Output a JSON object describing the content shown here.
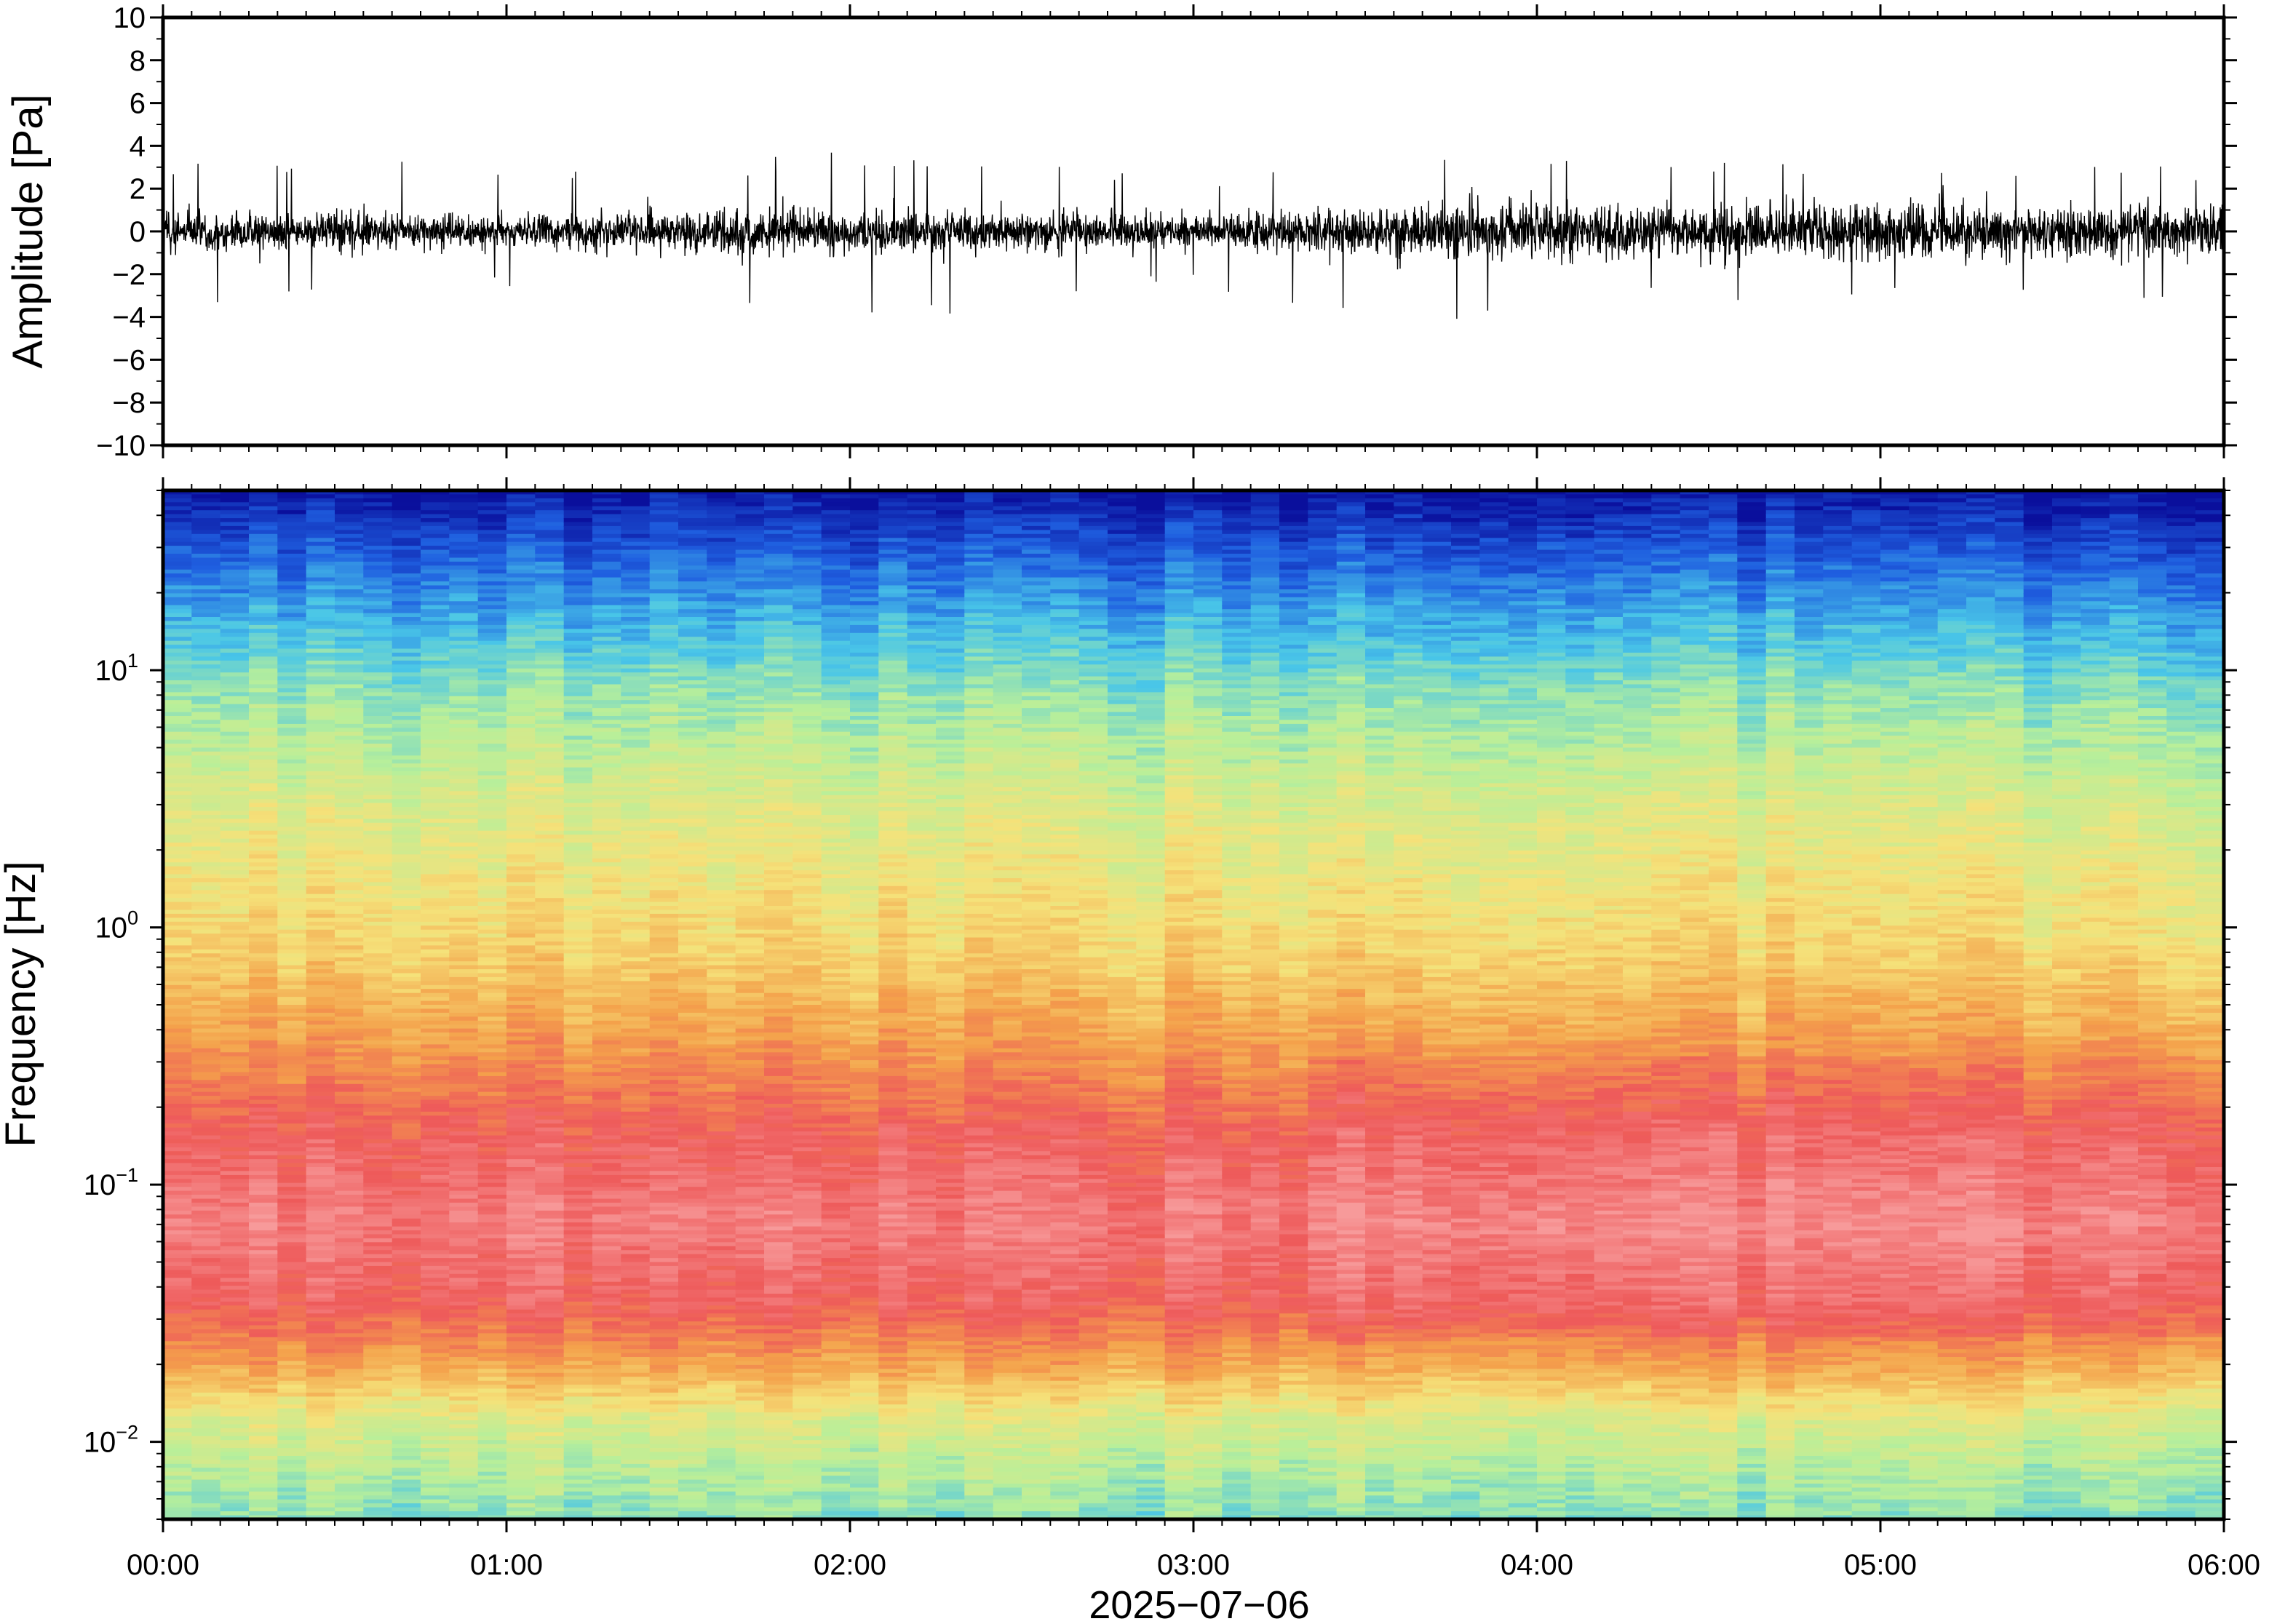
{
  "chart_data": [
    {
      "type": "line",
      "name": "waveform",
      "ylabel": "Amplitude [Pa]",
      "xlabel": "",
      "ylim": [
        -10,
        10
      ],
      "yticks": [
        "10",
        "8",
        "6",
        "4",
        "2",
        "0",
        "−2",
        "−4",
        "−6",
        "−8",
        "−10"
      ],
      "ytick_values": [
        10,
        8,
        6,
        4,
        2,
        0,
        -2,
        -4,
        -6,
        -8,
        -10
      ],
      "xlim_hours": [
        0,
        6
      ],
      "grid": false,
      "color": "#000000",
      "envelope": {
        "description_hours": [
          0,
          0.5,
          1.0,
          1.5,
          2.0,
          2.5,
          3.0,
          3.5,
          4.0,
          4.5,
          5.0,
          5.5,
          6.0
        ],
        "typical_amplitude": [
          1.1,
          1.0,
          0.8,
          1.1,
          1.2,
          1.0,
          0.8,
          1.3,
          1.5,
          1.4,
          1.4,
          1.3,
          1.4
        ],
        "peak_amplitude": [
          3.5,
          3.6,
          2.8,
          3.0,
          4.1,
          3.9,
          2.4,
          4.8,
          3.9,
          3.3,
          3.5,
          3.4,
          3.1
        ]
      }
    },
    {
      "type": "heatmap",
      "name": "spectrogram",
      "ylabel": "Frequency [Hz]",
      "xlabel": "2025−07−06",
      "xticks": [
        "00:00",
        "01:00",
        "02:00",
        "03:00",
        "04:00",
        "05:00",
        "06:00"
      ],
      "xtick_hours": [
        0,
        1,
        2,
        3,
        4,
        5,
        6
      ],
      "yscale": "log",
      "ylim": [
        0.005,
        50
      ],
      "yticks": [
        {
          "base": "10",
          "exp": "1",
          "value": 10
        },
        {
          "base": "10",
          "exp": "0",
          "value": 1
        },
        {
          "base": "10",
          "exp": "−1",
          "value": 0.1
        },
        {
          "base": "10",
          "exp": "−2",
          "value": 0.01
        }
      ],
      "colormap": [
        "#0a0f9c",
        "#1f5fe0",
        "#49c6e8",
        "#b8ef9a",
        "#f5e27a",
        "#f4a14b",
        "#ee5a5a",
        "#f79a9a"
      ],
      "colormap_note": "",
      "profile_by_frequency": [
        {
          "freq": 45,
          "color": "#0a1aa8"
        },
        {
          "freq": 20,
          "color": "#2c7ae6"
        },
        {
          "freq": 10,
          "color": "#62d2e2"
        },
        {
          "freq": 5,
          "color": "#c6ec8c"
        },
        {
          "freq": 2,
          "color": "#f2dc73"
        },
        {
          "freq": 0.6,
          "color": "#f6b25a"
        },
        {
          "freq": 0.2,
          "color": "#ef6a55"
        },
        {
          "freq": 0.08,
          "color": "#f2858a"
        },
        {
          "freq": 0.03,
          "color": "#f06a4e"
        },
        {
          "freq": 0.015,
          "color": "#f5d070"
        },
        {
          "freq": 0.006,
          "color": "#9eeaa8"
        }
      ]
    }
  ]
}
